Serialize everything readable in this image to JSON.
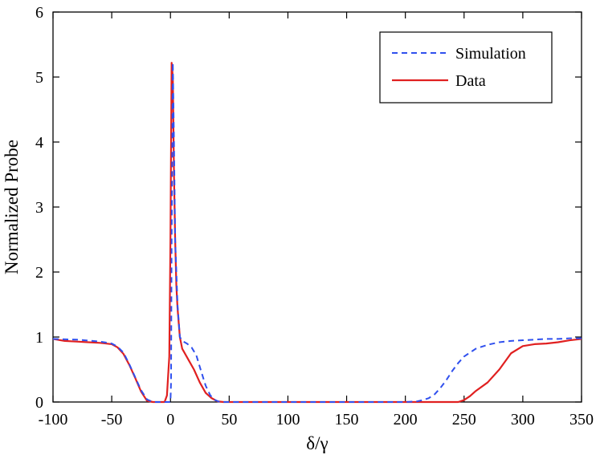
{
  "chart_data": {
    "type": "line",
    "title": "",
    "xlabel": "δ/γ",
    "ylabel": "Normalized Probe",
    "xlim": [
      -100,
      350
    ],
    "ylim": [
      0,
      6
    ],
    "xticks": [
      -100,
      -50,
      0,
      50,
      100,
      150,
      200,
      250,
      300,
      350
    ],
    "yticks": [
      0,
      1,
      2,
      3,
      4,
      5,
      6
    ],
    "xtick_labels": [
      "-100",
      "-50",
      "0",
      "50",
      "100",
      "150",
      "200",
      "250",
      "300",
      "350"
    ],
    "ytick_labels": [
      "0",
      "1",
      "2",
      "3",
      "4",
      "5",
      "6"
    ],
    "grid": false,
    "legend_position": "top-right",
    "series": [
      {
        "name": "Simulation",
        "color": "#3050ee",
        "style": "dashed",
        "x": [
          -100,
          -80,
          -60,
          -50,
          -45,
          -40,
          -35,
          -30,
          -25,
          -20,
          -15,
          -10,
          -5,
          0,
          0.5,
          1,
          2,
          3,
          4,
          6,
          8,
          10,
          14,
          18,
          22,
          26,
          30,
          34,
          38,
          42,
          50,
          100,
          150,
          200,
          210,
          215,
          220,
          225,
          230,
          235,
          240,
          245,
          250,
          260,
          270,
          280,
          290,
          300,
          310,
          320,
          330,
          340,
          350
        ],
        "y": [
          0.97,
          0.96,
          0.93,
          0.9,
          0.85,
          0.76,
          0.58,
          0.38,
          0.18,
          0.04,
          0.0,
          0.0,
          0.0,
          0.0,
          0.3,
          2.5,
          5.22,
          4.0,
          2.5,
          1.5,
          1.0,
          0.94,
          0.9,
          0.84,
          0.72,
          0.48,
          0.25,
          0.1,
          0.03,
          0.0,
          0.0,
          0.0,
          0.0,
          0.0,
          0.01,
          0.03,
          0.06,
          0.12,
          0.22,
          0.34,
          0.48,
          0.6,
          0.7,
          0.82,
          0.88,
          0.92,
          0.94,
          0.95,
          0.96,
          0.97,
          0.97,
          0.98,
          0.98
        ]
      },
      {
        "name": "Data",
        "color": "#e02020",
        "style": "solid",
        "x": [
          -100,
          -90,
          -80,
          -70,
          -60,
          -50,
          -45,
          -40,
          -35,
          -30,
          -25,
          -20,
          -15,
          -10,
          -5,
          -3,
          -1,
          0,
          1,
          2,
          3,
          4,
          5,
          6,
          8,
          10,
          15,
          20,
          25,
          30,
          35,
          40,
          45,
          50,
          100,
          150,
          200,
          240,
          245,
          250,
          255,
          260,
          270,
          280,
          290,
          300,
          310,
          320,
          330,
          340,
          350
        ],
        "y": [
          0.97,
          0.94,
          0.93,
          0.92,
          0.91,
          0.89,
          0.84,
          0.74,
          0.57,
          0.37,
          0.16,
          0.02,
          0.0,
          0.0,
          0.0,
          0.1,
          0.7,
          2.5,
          5.22,
          5.0,
          3.5,
          2.5,
          1.8,
          1.45,
          1.0,
          0.82,
          0.66,
          0.5,
          0.3,
          0.14,
          0.06,
          0.01,
          0.0,
          0.0,
          0.0,
          0.0,
          0.0,
          0.0,
          0.0,
          0.03,
          0.09,
          0.17,
          0.3,
          0.5,
          0.75,
          0.86,
          0.89,
          0.9,
          0.92,
          0.95,
          0.97
        ]
      }
    ]
  }
}
